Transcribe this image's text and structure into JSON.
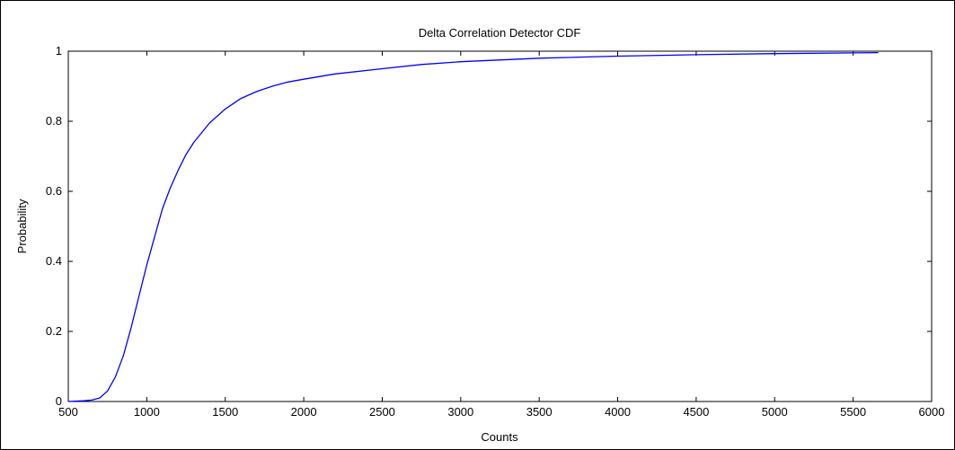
{
  "chart_data": {
    "type": "line",
    "title": "Delta Correlation Detector CDF",
    "xlabel": "Counts",
    "ylabel": "Probability",
    "xlim": [
      500,
      6000
    ],
    "ylim": [
      0,
      1
    ],
    "grid": false,
    "x_ticks": [
      "500",
      "1000",
      "1500",
      "2000",
      "2500",
      "3000",
      "3500",
      "4000",
      "4500",
      "5000",
      "5500",
      "6000"
    ],
    "y_ticks": [
      "0",
      "0.2",
      "0.4",
      "0.6",
      "0.8",
      "1"
    ],
    "series": [
      {
        "color": "#0000ff",
        "x": [
          500,
          600,
          650,
          700,
          750,
          800,
          850,
          900,
          950,
          1000,
          1050,
          1100,
          1150,
          1200,
          1250,
          1300,
          1400,
          1500,
          1600,
          1700,
          1800,
          1900,
          2000,
          2200,
          2500,
          2750,
          3000,
          3500,
          4000,
          4500,
          5000,
          5500,
          5660
        ],
        "y": [
          0.0,
          0.002,
          0.004,
          0.01,
          0.03,
          0.07,
          0.13,
          0.21,
          0.3,
          0.39,
          0.47,
          0.55,
          0.61,
          0.66,
          0.705,
          0.74,
          0.795,
          0.835,
          0.865,
          0.885,
          0.9,
          0.912,
          0.92,
          0.935,
          0.95,
          0.962,
          0.97,
          0.98,
          0.986,
          0.99,
          0.993,
          0.995,
          0.996
        ]
      }
    ]
  }
}
